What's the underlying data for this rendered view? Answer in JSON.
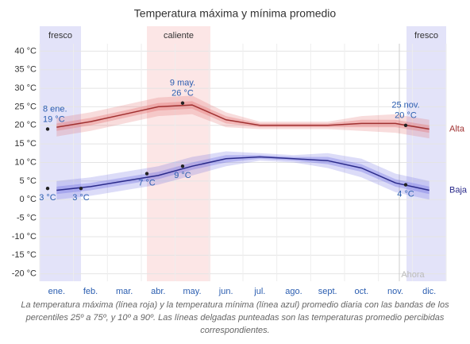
{
  "chart_data": {
    "type": "line",
    "title": "Temperatura máxima y mínima promedio",
    "categories": [
      "ene.",
      "feb.",
      "mar.",
      "abr.",
      "may.",
      "jun.",
      "jul.",
      "ago.",
      "sept.",
      "oct.",
      "nov.",
      "dic."
    ],
    "series": [
      {
        "name": "Alta",
        "color": "#a03030",
        "band_color": "#e06060",
        "values": [
          19.5,
          21,
          23,
          25,
          25.5,
          21.5,
          20,
          20,
          20,
          20.5,
          20.5,
          19
        ],
        "p25": [
          18.5,
          20,
          22,
          24,
          24.5,
          20.5,
          19.5,
          19.5,
          19.5,
          19.5,
          19.5,
          18
        ],
        "p75": [
          20.5,
          22,
          24,
          26,
          26.5,
          22.5,
          20.5,
          20.5,
          20.5,
          21.5,
          21.5,
          20
        ],
        "p10": [
          17,
          18.5,
          20.5,
          22.5,
          23,
          19.5,
          19,
          19,
          19,
          18.5,
          18,
          16.5
        ],
        "p90": [
          22,
          23.5,
          25.5,
          27.5,
          28,
          23.5,
          21,
          21,
          21,
          22.5,
          23,
          21.5
        ]
      },
      {
        "name": "Baja",
        "color": "#2a2a8a",
        "band_color": "#6060e0",
        "values": [
          2.5,
          3.5,
          5,
          6.5,
          9,
          11,
          11.5,
          11,
          10.5,
          8.5,
          4.5,
          2.5
        ],
        "p25": [
          1.5,
          2.5,
          4,
          5.5,
          8,
          10,
          11,
          10.5,
          9.5,
          7.5,
          3.5,
          1.5
        ],
        "p75": [
          3.5,
          4.5,
          6,
          7.5,
          10,
          12,
          12,
          11.5,
          11.5,
          9.5,
          5.5,
          3.5
        ],
        "p10": [
          0,
          1,
          2.5,
          4,
          6.5,
          9,
          10.5,
          10,
          8.5,
          6,
          2,
          0
        ],
        "p90": [
          5,
          6,
          7.5,
          9,
          11.5,
          13,
          12.5,
          12,
          12.5,
          11,
          7,
          5
        ]
      }
    ],
    "annotations": {
      "dates": [
        "8 ene.",
        "9 may.",
        "25 nov.",
        null,
        null,
        null,
        null,
        null
      ],
      "values": [
        19,
        26,
        20,
        3,
        3,
        7,
        9,
        4
      ],
      "value_labels": [
        "19 °C",
        "26 °C",
        "20 °C",
        "3 °C",
        "3 °C",
        "7 °C",
        "9 °C",
        "4 °C"
      ]
    },
    "seasons": [
      "fresco",
      "caliente",
      "fresco"
    ],
    "now_label": "Ahora",
    "ylim": [
      -22,
      42
    ],
    "yticks": [
      {
        "value": 40,
        "label": "40 °C"
      },
      {
        "value": 35,
        "label": "35 °C"
      },
      {
        "value": 30,
        "label": "30 °C"
      },
      {
        "value": 25,
        "label": "25 °C"
      },
      {
        "value": 20,
        "label": "20 °C"
      },
      {
        "value": 15,
        "label": "15 °C"
      },
      {
        "value": 10,
        "label": "10 °C"
      },
      {
        "value": 5,
        "label": "5 °C"
      },
      {
        "value": 0,
        "label": "0 °C"
      },
      {
        "value": -5,
        "label": "-5 °C"
      },
      {
        "value": -10,
        "label": "-10 °C"
      },
      {
        "value": -15,
        "label": "-15 °C"
      },
      {
        "value": -20,
        "label": "-20 °C"
      }
    ],
    "grid": true,
    "caption": "La temperatura máxima (línea roja) y la temperatura mínima (línea azul) promedio diaria con las bandas de los percentiles 25º a 75º, y 10º a 90º. Las líneas delgadas punteadas son las temperaturas promedio percibidas correspondientes."
  }
}
